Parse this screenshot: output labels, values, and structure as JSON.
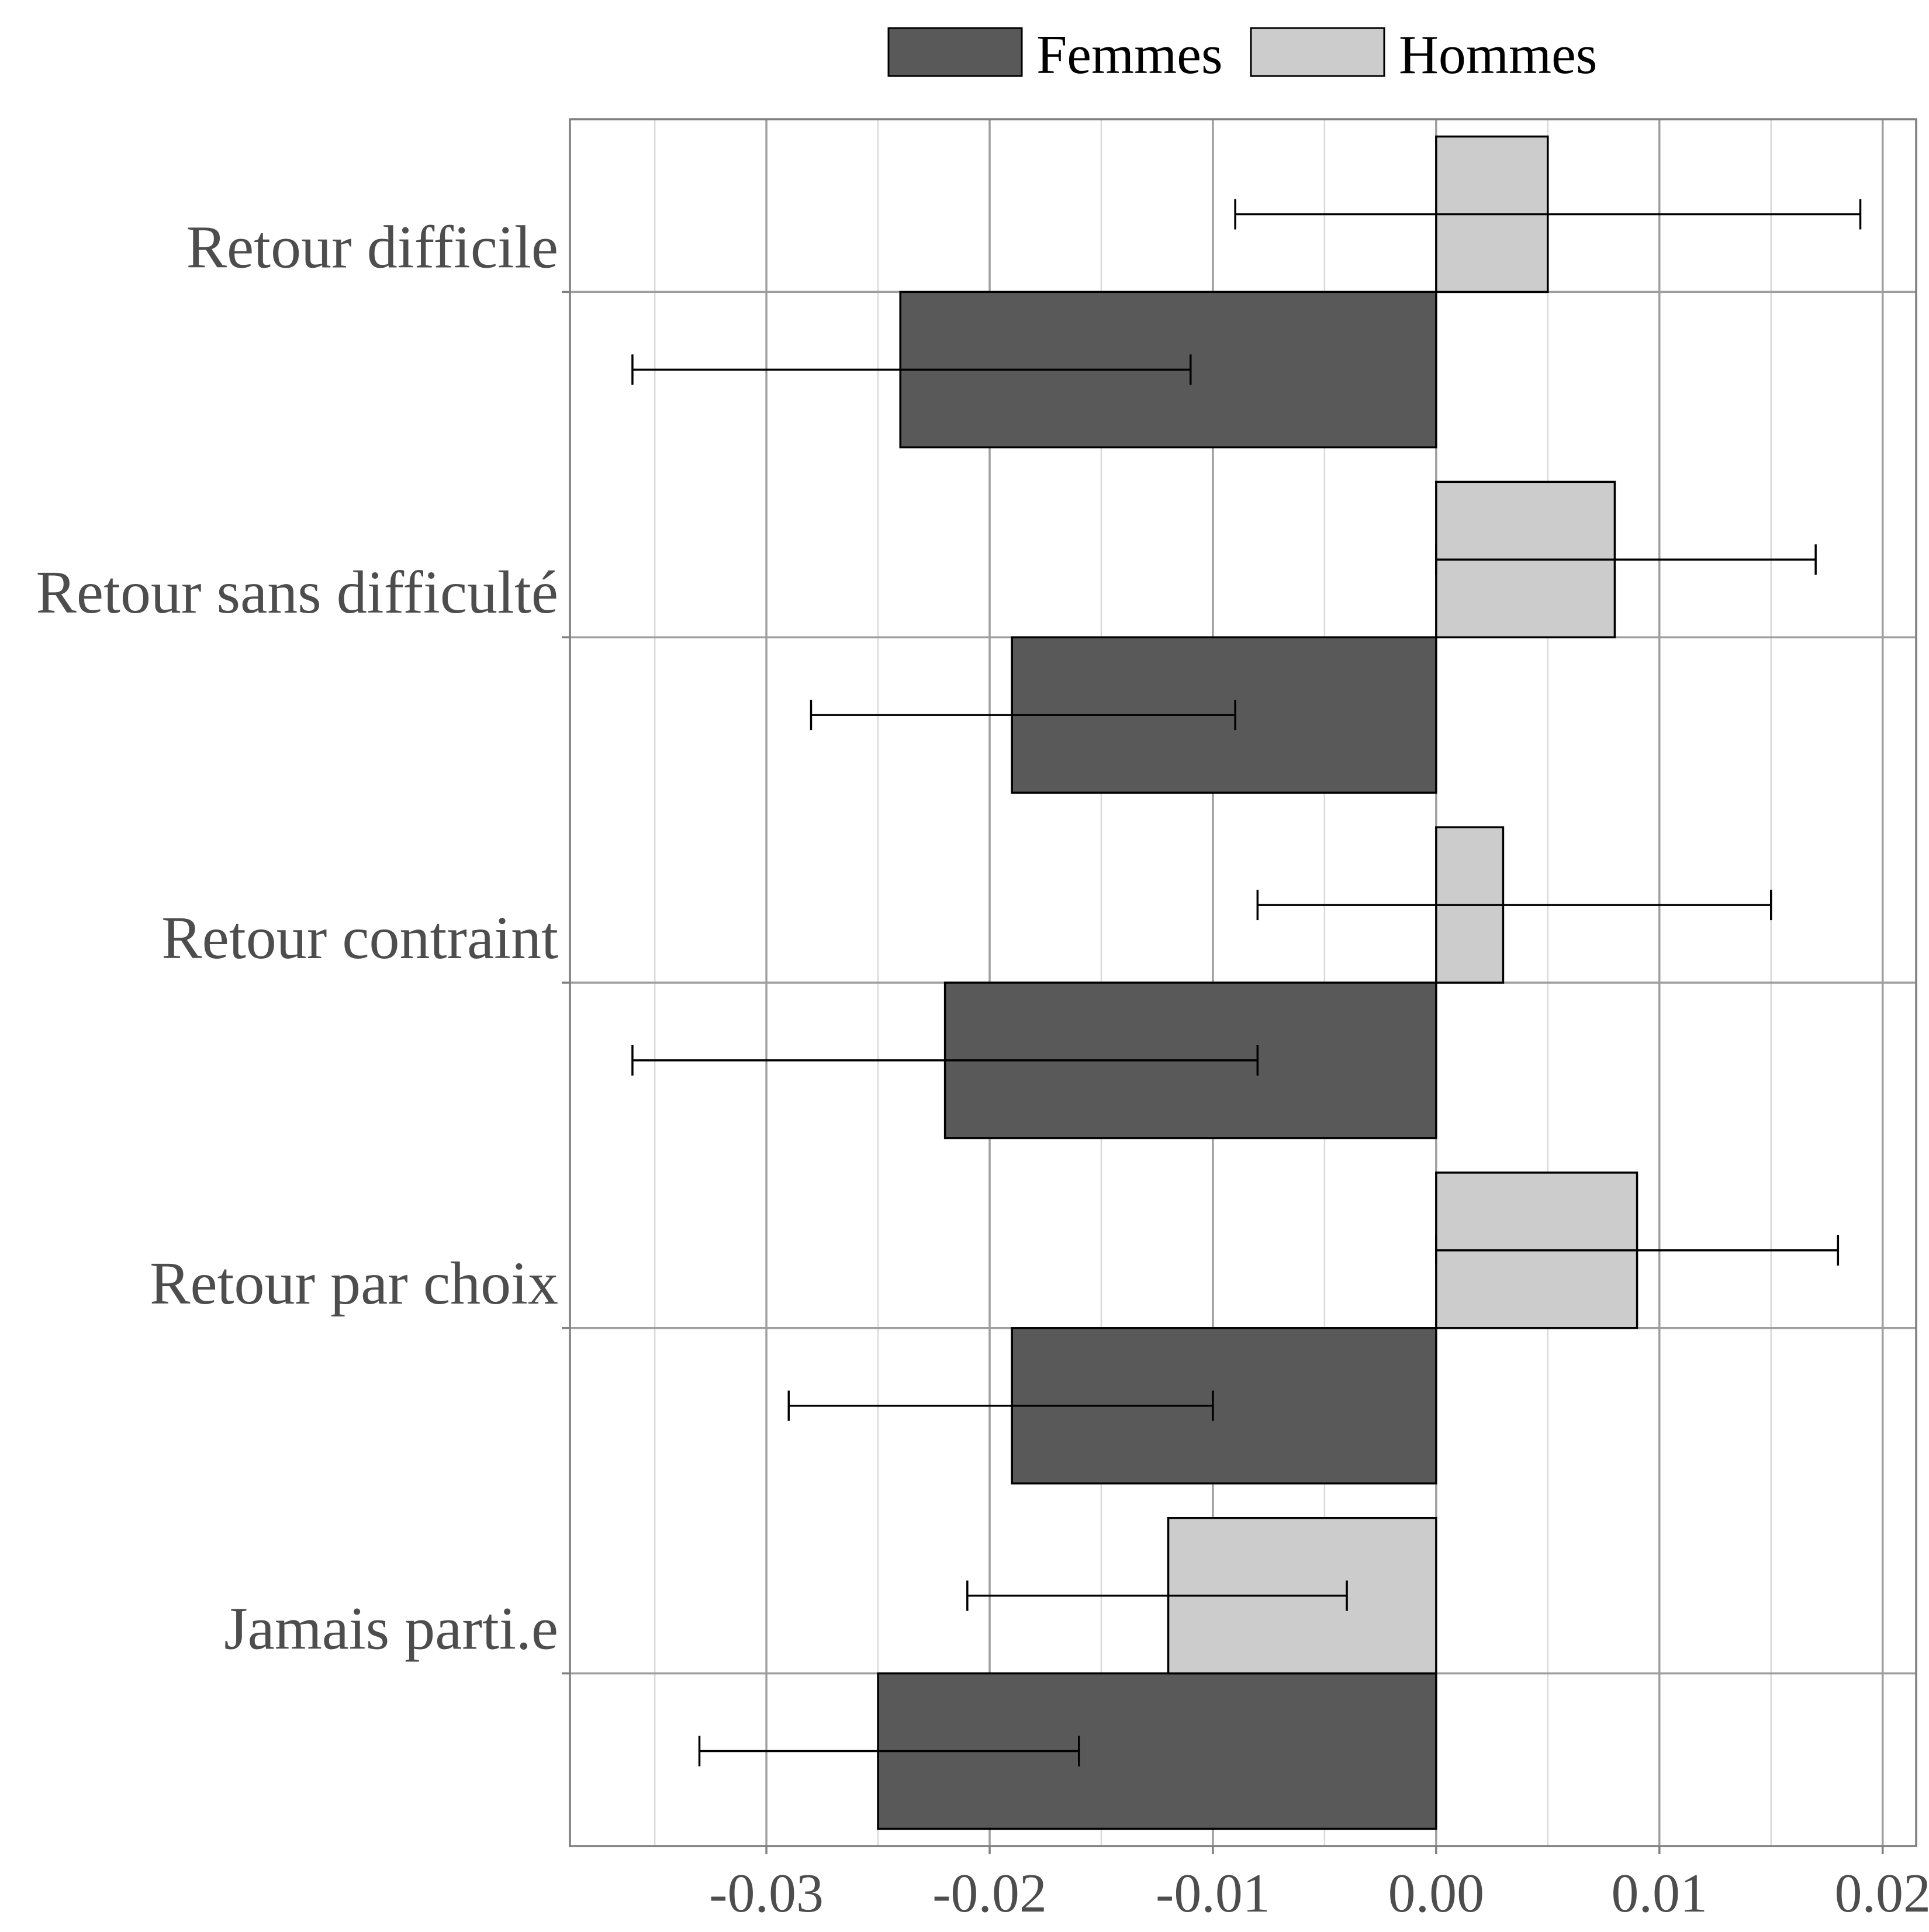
{
  "chart_data": {
    "type": "bar",
    "orientation": "horizontal",
    "title": "",
    "xlabel": "",
    "ylabel": "",
    "categories": [
      "Retour difficile",
      "Retour sans difficulté",
      "Retour contraint",
      "Retour par choix",
      "Jamais parti.e"
    ],
    "series": [
      {
        "name": "Femmes",
        "color": "#595959",
        "values": [
          -0.024,
          -0.019,
          -0.022,
          -0.019,
          -0.025
        ],
        "ci_low": [
          -0.036,
          -0.028,
          -0.036,
          -0.029,
          -0.033
        ],
        "ci_high": [
          -0.011,
          -0.009,
          -0.008,
          -0.01,
          -0.016
        ]
      },
      {
        "name": "Hommes",
        "color": "#cccccc",
        "values": [
          0.005,
          0.008,
          0.003,
          0.009,
          -0.012
        ],
        "ci_low": [
          -0.009,
          0.0,
          -0.008,
          0.0,
          -0.021
        ],
        "ci_high": [
          0.019,
          0.017,
          0.015,
          0.018,
          -0.004
        ]
      }
    ],
    "xlim": [
      -0.0388,
      0.0215
    ],
    "xticks": [
      "-0.03",
      "-0.02",
      "-0.01",
      "0.00",
      "0.01",
      "0.02"
    ],
    "xtick_values": [
      -0.03,
      -0.02,
      -0.01,
      0.0,
      0.01,
      0.02
    ],
    "grid": true,
    "legend_position": "top-center"
  }
}
